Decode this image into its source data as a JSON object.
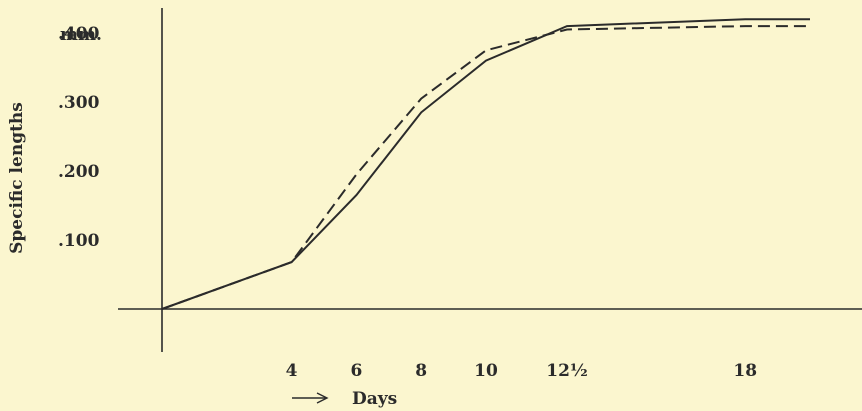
{
  "chart_data": {
    "type": "line",
    "title": "",
    "xlabel": "Days",
    "ylabel": "Specific lengths",
    "y_unit": "mm.",
    "x_tick_labels": [
      "4",
      "6",
      "8",
      "10",
      "12½",
      "18"
    ],
    "x_ticks": [
      4,
      6,
      8,
      10,
      12.5,
      18
    ],
    "y_tick_labels": [
      ".100",
      ".200",
      ".300",
      ".400"
    ],
    "y_ticks": [
      0.1,
      0.2,
      0.3,
      0.4
    ],
    "xlim": [
      0,
      20
    ],
    "ylim": [
      0,
      0.43
    ],
    "grid": false,
    "legend": "none",
    "series": [
      {
        "style": "solid",
        "color": "#2b2b2b",
        "x": [
          0,
          4,
          6,
          8,
          10,
          12.5,
          18,
          20
        ],
        "y": [
          0,
          0.068,
          0.165,
          0.285,
          0.36,
          0.41,
          0.42,
          0.42
        ]
      },
      {
        "style": "dashed",
        "color": "#2b2b2b",
        "x": [
          0,
          4,
          6,
          8,
          10,
          12.5,
          18,
          20
        ],
        "y": [
          0,
          0.068,
          0.195,
          0.305,
          0.375,
          0.405,
          0.41,
          0.41
        ]
      }
    ]
  }
}
